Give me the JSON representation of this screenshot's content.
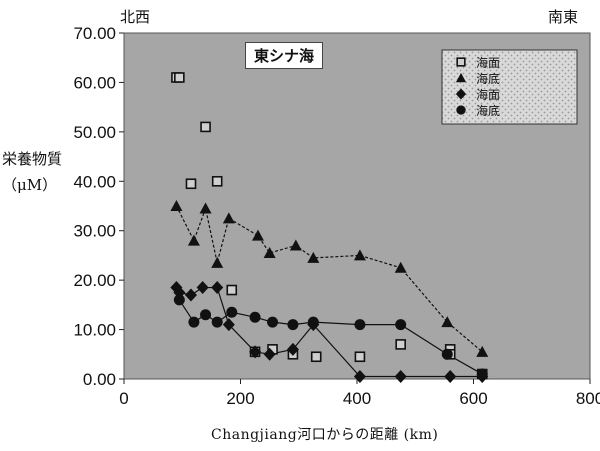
{
  "chart_data": {
    "type": "scatter",
    "inset_label": "東シナ海",
    "corner_left": "北西",
    "corner_right": "南東",
    "ylabel_line1": "栄養物質",
    "ylabel_line2": "（μM）",
    "xlabel": "Changjiang河口からの距離 (km)",
    "xlim": [
      0,
      800
    ],
    "ylim": [
      0,
      70
    ],
    "x_ticks": [
      "0",
      "200",
      "400",
      "600",
      "800"
    ],
    "y_ticks": [
      "0.00",
      "10.00",
      "20.00",
      "30.00",
      "40.00",
      "50.00",
      "60.00",
      "70.00"
    ],
    "legend_position": "top-right",
    "colors": {
      "plot_bg": "#a6a6a6",
      "marker": "#111111",
      "open_fill": "#cfcfcf"
    },
    "series": [
      {
        "name": "海面",
        "marker": "square-open",
        "connected": false,
        "x": [
          90,
          95,
          115,
          140,
          160,
          185,
          225,
          255,
          290,
          330,
          405,
          475,
          560,
          560,
          615
        ],
        "y": [
          61,
          61,
          39.5,
          51,
          40,
          18,
          5.5,
          6,
          5,
          4.5,
          4.5,
          7,
          6,
          5,
          1
        ]
      },
      {
        "name": "海底",
        "marker": "triangle",
        "connected": true,
        "x": [
          90,
          120,
          140,
          160,
          180,
          230,
          250,
          295,
          325,
          405,
          475,
          555,
          615
        ],
        "y": [
          35,
          28,
          34.5,
          23.5,
          32.5,
          29,
          25.5,
          27,
          24.5,
          25,
          22.5,
          11.5,
          5.5
        ]
      },
      {
        "name": "海面",
        "marker": "diamond",
        "connected": true,
        "x": [
          90,
          95,
          115,
          135,
          160,
          180,
          225,
          250,
          290,
          325,
          405,
          475,
          560,
          615
        ],
        "y": [
          18.5,
          17.5,
          17,
          18.5,
          18.5,
          11,
          5.5,
          5,
          6,
          11,
          0.5,
          0.5,
          0.5,
          0.5
        ]
      },
      {
        "name": "海底",
        "marker": "circle",
        "connected": true,
        "x": [
          95,
          120,
          140,
          160,
          185,
          225,
          255,
          290,
          325,
          405,
          475,
          555,
          615
        ],
        "y": [
          16,
          11.5,
          13,
          11.5,
          13.5,
          12.5,
          11.5,
          11,
          11.5,
          11,
          11,
          5,
          1
        ]
      }
    ]
  }
}
